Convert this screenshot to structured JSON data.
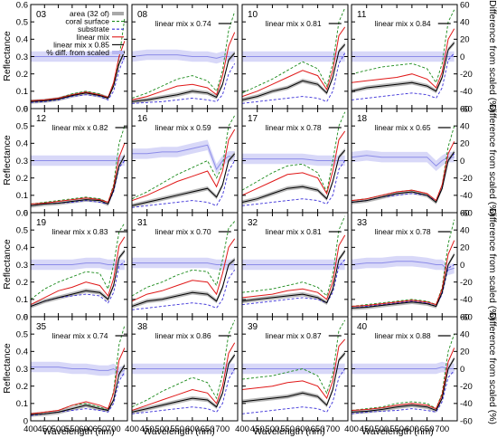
{
  "figure": {
    "left_axis_title": "Reflectance",
    "right_axis_title": "Difference from scaled (%)",
    "bottom_axis_title": "Wavelength (nm)"
  },
  "chart_data": {
    "type": "line",
    "grid_columns": 4,
    "grid_rows": 4,
    "x_range": [
      400,
      750
    ],
    "x_ticks": [
      400,
      450,
      500,
      550,
      600,
      650,
      700
    ],
    "y_left_range": [
      0,
      0.6
    ],
    "y_left_ticks": [
      0,
      0.1,
      0.2,
      0.3,
      0.4,
      0.5,
      0.6
    ],
    "y_right_range": [
      -60,
      60
    ],
    "y_right_ticks": [
      -60,
      -40,
      -20,
      0,
      20,
      40,
      60
    ],
    "grid": false,
    "legend_placement": "top-right of first panel",
    "legend": [
      {
        "label": "area (32 of)",
        "style": "band",
        "color": "#a9a9a9"
      },
      {
        "label": "coral surface",
        "style": "dashed",
        "color": "#1a8a1a"
      },
      {
        "label": "substrate",
        "style": "dashed",
        "color": "#3a2fd8"
      },
      {
        "label": "linear mix",
        "style": "solid",
        "color": "#e01818"
      },
      {
        "label": "linear mix x 0.85",
        "style": "solid",
        "color": "#000000"
      },
      {
        "label": "% diff. from scaled",
        "style": "band",
        "color": "#b8b8f2"
      }
    ],
    "colors": {
      "area": "#a9a9a9",
      "coral_surface": "#1a8a1a",
      "substrate": "#3a2fd8",
      "linear_mix": "#e01818",
      "linear_mix_scaled": "#000000",
      "pct_diff": "#b8b8f2"
    },
    "x_samples": [
      400,
      450,
      500,
      550,
      600,
      650,
      680,
      700,
      720,
      740
    ],
    "panels": [
      {
        "id": "03",
        "scale_label": "",
        "coral": [
          0.045,
          0.05,
          0.06,
          0.085,
          0.1,
          0.085,
          0.06,
          0.14,
          0.29,
          0.52
        ],
        "substrate": [
          0.035,
          0.04,
          0.05,
          0.07,
          0.08,
          0.07,
          0.05,
          0.1,
          0.22,
          0.3
        ],
        "mix": [
          0.045,
          0.05,
          0.06,
          0.08,
          0.095,
          0.08,
          0.065,
          0.15,
          0.3,
          0.39
        ],
        "scaled": [
          0.04,
          0.045,
          0.055,
          0.075,
          0.09,
          0.075,
          0.06,
          0.13,
          0.26,
          0.33
        ],
        "pct_diff": [
          0,
          0,
          0,
          0,
          0,
          0,
          0,
          0,
          0,
          0
        ]
      },
      {
        "id": "08",
        "scale_label": "linear mix x 0.74",
        "coral": [
          0.06,
          0.09,
          0.13,
          0.17,
          0.19,
          0.16,
          0.1,
          0.22,
          0.45,
          0.56
        ],
        "substrate": [
          0.03,
          0.035,
          0.04,
          0.05,
          0.06,
          0.05,
          0.04,
          0.08,
          0.2,
          0.26
        ],
        "mix": [
          0.05,
          0.07,
          0.1,
          0.13,
          0.14,
          0.12,
          0.08,
          0.19,
          0.36,
          0.44
        ],
        "scaled": [
          0.04,
          0.05,
          0.065,
          0.08,
          0.1,
          0.09,
          0.065,
          0.14,
          0.28,
          0.32
        ],
        "pct_diff": [
          0,
          2,
          2,
          2,
          0,
          0,
          -2,
          0,
          0,
          0
        ]
      },
      {
        "id": "10",
        "scale_label": "linear mix x 0.81",
        "coral": [
          0.09,
          0.13,
          0.17,
          0.22,
          0.27,
          0.23,
          0.13,
          0.26,
          0.5,
          0.58
        ],
        "substrate": [
          0.03,
          0.04,
          0.05,
          0.06,
          0.07,
          0.06,
          0.04,
          0.1,
          0.26,
          0.32
        ],
        "mix": [
          0.07,
          0.1,
          0.14,
          0.18,
          0.22,
          0.19,
          0.11,
          0.22,
          0.42,
          0.47
        ],
        "scaled": [
          0.05,
          0.07,
          0.1,
          0.12,
          0.16,
          0.14,
          0.09,
          0.18,
          0.33,
          0.37
        ],
        "pct_diff": [
          0,
          0,
          0,
          0,
          0,
          0,
          0,
          0,
          0,
          0
        ]
      },
      {
        "id": "11",
        "scale_label": "linear mix x 0.84",
        "coral": [
          0.2,
          0.22,
          0.24,
          0.25,
          0.26,
          0.23,
          0.15,
          0.26,
          0.5,
          0.57
        ],
        "substrate": [
          0.05,
          0.06,
          0.07,
          0.08,
          0.09,
          0.08,
          0.06,
          0.12,
          0.28,
          0.32
        ],
        "mix": [
          0.15,
          0.16,
          0.17,
          0.18,
          0.2,
          0.17,
          0.12,
          0.21,
          0.4,
          0.46
        ],
        "scaled": [
          0.1,
          0.12,
          0.13,
          0.14,
          0.15,
          0.13,
          0.1,
          0.18,
          0.34,
          0.38
        ],
        "pct_diff": [
          0,
          0,
          0,
          0,
          0,
          0,
          0,
          0,
          0,
          0
        ]
      },
      {
        "id": "12",
        "scale_label": "linear mix x 0.82",
        "coral": [
          0.05,
          0.06,
          0.07,
          0.08,
          0.09,
          0.08,
          0.06,
          0.16,
          0.4,
          0.5
        ],
        "substrate": [
          0.04,
          0.05,
          0.055,
          0.06,
          0.07,
          0.06,
          0.05,
          0.12,
          0.26,
          0.3
        ],
        "mix": [
          0.05,
          0.055,
          0.065,
          0.075,
          0.085,
          0.075,
          0.06,
          0.15,
          0.32,
          0.4
        ],
        "scaled": [
          0.04,
          0.05,
          0.055,
          0.065,
          0.075,
          0.07,
          0.05,
          0.13,
          0.27,
          0.33
        ],
        "pct_diff": [
          0,
          0,
          0,
          0,
          0,
          0,
          0,
          0,
          0,
          0
        ]
      },
      {
        "id": "16",
        "scale_label": "linear mix x 0.59",
        "coral": [
          0.08,
          0.12,
          0.17,
          0.22,
          0.26,
          0.3,
          0.2,
          0.27,
          0.5,
          0.56
        ],
        "substrate": [
          0.03,
          0.04,
          0.05,
          0.06,
          0.07,
          0.06,
          0.04,
          0.1,
          0.24,
          0.3
        ],
        "mix": [
          0.07,
          0.1,
          0.14,
          0.18,
          0.21,
          0.24,
          0.15,
          0.24,
          0.42,
          0.48
        ],
        "scaled": [
          0.04,
          0.06,
          0.08,
          0.1,
          0.12,
          0.14,
          0.09,
          0.16,
          0.3,
          0.34
        ],
        "pct_diff": [
          8,
          8,
          10,
          10,
          14,
          18,
          -10,
          0,
          5,
          5
        ]
      },
      {
        "id": "17",
        "scale_label": "linear mix x 0.78",
        "coral": [
          0.13,
          0.18,
          0.23,
          0.27,
          0.28,
          0.23,
          0.12,
          0.3,
          0.5,
          0.58
        ],
        "substrate": [
          0.04,
          0.05,
          0.06,
          0.07,
          0.08,
          0.07,
          0.05,
          0.1,
          0.25,
          0.3
        ],
        "mix": [
          0.1,
          0.14,
          0.18,
          0.22,
          0.23,
          0.2,
          0.11,
          0.24,
          0.42,
          0.47
        ],
        "scaled": [
          0.06,
          0.08,
          0.11,
          0.14,
          0.15,
          0.13,
          0.08,
          0.18,
          0.32,
          0.36
        ],
        "pct_diff": [
          2,
          2,
          2,
          2,
          2,
          0,
          0,
          0,
          0,
          0
        ]
      },
      {
        "id": "18",
        "scale_label": "linear mix x 0.65",
        "coral": [
          0.07,
          0.08,
          0.1,
          0.12,
          0.13,
          0.11,
          0.07,
          0.16,
          0.38,
          0.5
        ],
        "substrate": [
          0.06,
          0.07,
          0.09,
          0.1,
          0.11,
          0.1,
          0.07,
          0.14,
          0.3,
          0.34
        ],
        "mix": [
          0.07,
          0.08,
          0.1,
          0.12,
          0.13,
          0.11,
          0.07,
          0.16,
          0.34,
          0.41
        ],
        "scaled": [
          0.06,
          0.07,
          0.09,
          0.11,
          0.12,
          0.1,
          0.06,
          0.14,
          0.3,
          0.35
        ],
        "pct_diff": [
          4,
          6,
          4,
          4,
          4,
          4,
          -6,
          0,
          4,
          4
        ]
      },
      {
        "id": "19",
        "scale_label": "linear mix x 0.83",
        "coral": [
          0.1,
          0.16,
          0.2,
          0.23,
          0.26,
          0.25,
          0.16,
          0.3,
          0.49,
          0.54
        ],
        "substrate": [
          0.06,
          0.09,
          0.11,
          0.12,
          0.13,
          0.12,
          0.08,
          0.14,
          0.29,
          0.32
        ],
        "mix": [
          0.07,
          0.11,
          0.15,
          0.17,
          0.2,
          0.18,
          0.12,
          0.22,
          0.41,
          0.46
        ],
        "scaled": [
          0.06,
          0.09,
          0.11,
          0.13,
          0.15,
          0.14,
          0.1,
          0.18,
          0.34,
          0.38
        ],
        "pct_diff": [
          0,
          0,
          0,
          0,
          2,
          2,
          0,
          0,
          0,
          0
        ]
      },
      {
        "id": "31",
        "scale_label": "linear mix x 0.70",
        "coral": [
          0.12,
          0.17,
          0.2,
          0.24,
          0.27,
          0.26,
          0.18,
          0.33,
          0.51,
          0.55
        ],
        "substrate": [
          0.04,
          0.05,
          0.06,
          0.07,
          0.08,
          0.07,
          0.05,
          0.1,
          0.22,
          0.27
        ],
        "mix": [
          0.09,
          0.13,
          0.15,
          0.18,
          0.21,
          0.2,
          0.13,
          0.25,
          0.4,
          0.45
        ],
        "scaled": [
          0.06,
          0.09,
          0.1,
          0.12,
          0.14,
          0.13,
          0.09,
          0.17,
          0.3,
          0.33
        ],
        "pct_diff": [
          2,
          2,
          2,
          2,
          2,
          2,
          0,
          0,
          0,
          0
        ]
      },
      {
        "id": "32",
        "scale_label": "linear mix x 0.81",
        "coral": [
          0.14,
          0.15,
          0.16,
          0.18,
          0.2,
          0.17,
          0.12,
          0.24,
          0.5,
          0.58
        ],
        "substrate": [
          0.07,
          0.08,
          0.09,
          0.1,
          0.11,
          0.1,
          0.08,
          0.14,
          0.29,
          0.33
        ],
        "mix": [
          0.11,
          0.12,
          0.13,
          0.15,
          0.16,
          0.14,
          0.1,
          0.2,
          0.41,
          0.47
        ],
        "scaled": [
          0.09,
          0.1,
          0.11,
          0.12,
          0.13,
          0.11,
          0.08,
          0.16,
          0.33,
          0.38
        ],
        "pct_diff": [
          0,
          0,
          0,
          0,
          0,
          0,
          0,
          0,
          0,
          0
        ]
      },
      {
        "id": "33",
        "scale_label": "linear mix x 0.78",
        "coral": [
          0.06,
          0.07,
          0.08,
          0.09,
          0.1,
          0.09,
          0.07,
          0.17,
          0.42,
          0.56
        ],
        "substrate": [
          0.05,
          0.06,
          0.07,
          0.08,
          0.09,
          0.08,
          0.06,
          0.13,
          0.28,
          0.3
        ],
        "mix": [
          0.06,
          0.065,
          0.075,
          0.085,
          0.095,
          0.085,
          0.07,
          0.16,
          0.36,
          0.44
        ],
        "scaled": [
          0.05,
          0.055,
          0.065,
          0.075,
          0.085,
          0.075,
          0.06,
          0.14,
          0.3,
          0.36
        ],
        "pct_diff": [
          0,
          2,
          2,
          4,
          4,
          2,
          0,
          0,
          -6,
          -4
        ]
      },
      {
        "id": "35",
        "scale_label": "linear mix x 0.74",
        "coral": [
          0.04,
          0.05,
          0.06,
          0.09,
          0.1,
          0.08,
          0.06,
          0.17,
          0.44,
          0.55
        ],
        "substrate": [
          0.03,
          0.04,
          0.05,
          0.06,
          0.07,
          0.06,
          0.05,
          0.1,
          0.23,
          0.28
        ],
        "mix": [
          0.04,
          0.05,
          0.06,
          0.09,
          0.11,
          0.09,
          0.07,
          0.16,
          0.35,
          0.42
        ],
        "scaled": [
          0.035,
          0.04,
          0.05,
          0.07,
          0.09,
          0.07,
          0.06,
          0.12,
          0.27,
          0.32
        ],
        "pct_diff": [
          2,
          2,
          2,
          0,
          0,
          -2,
          -2,
          0,
          -4,
          -2
        ]
      },
      {
        "id": "38",
        "scale_label": "linear mix x 0.86",
        "coral": [
          0.08,
          0.12,
          0.17,
          0.21,
          0.25,
          0.22,
          0.13,
          0.27,
          0.5,
          0.58
        ],
        "substrate": [
          0.04,
          0.05,
          0.06,
          0.07,
          0.08,
          0.07,
          0.05,
          0.1,
          0.24,
          0.3
        ],
        "mix": [
          0.06,
          0.09,
          0.12,
          0.15,
          0.18,
          0.16,
          0.1,
          0.2,
          0.39,
          0.45
        ],
        "scaled": [
          0.05,
          0.07,
          0.09,
          0.11,
          0.13,
          0.12,
          0.08,
          0.16,
          0.33,
          0.38
        ],
        "pct_diff": [
          0,
          0,
          0,
          0,
          0,
          0,
          0,
          0,
          0,
          0
        ]
      },
      {
        "id": "39",
        "scale_label": "linear mix x 0.87",
        "coral": [
          0.24,
          0.25,
          0.26,
          0.28,
          0.3,
          0.26,
          0.16,
          0.27,
          0.52,
          0.58
        ],
        "substrate": [
          0.04,
          0.05,
          0.06,
          0.07,
          0.08,
          0.07,
          0.05,
          0.11,
          0.25,
          0.3
        ],
        "mix": [
          0.18,
          0.19,
          0.2,
          0.22,
          0.23,
          0.2,
          0.13,
          0.23,
          0.43,
          0.47
        ],
        "scaled": [
          0.11,
          0.12,
          0.13,
          0.14,
          0.16,
          0.14,
          0.09,
          0.18,
          0.35,
          0.39
        ],
        "pct_diff": [
          0,
          0,
          0,
          0,
          0,
          0,
          0,
          0,
          0,
          0
        ]
      },
      {
        "id": "40",
        "scale_label": "linear mix x 0.88",
        "coral": [
          0.06,
          0.07,
          0.08,
          0.1,
          0.11,
          0.1,
          0.07,
          0.16,
          0.4,
          0.5
        ],
        "substrate": [
          0.04,
          0.05,
          0.055,
          0.06,
          0.07,
          0.06,
          0.05,
          0.11,
          0.25,
          0.29
        ],
        "mix": [
          0.06,
          0.065,
          0.075,
          0.09,
          0.1,
          0.09,
          0.07,
          0.15,
          0.34,
          0.42
        ],
        "scaled": [
          0.05,
          0.055,
          0.065,
          0.08,
          0.09,
          0.08,
          0.06,
          0.13,
          0.3,
          0.36
        ],
        "pct_diff": [
          0,
          0,
          0,
          0,
          0,
          0,
          0,
          2,
          0,
          0
        ]
      }
    ]
  }
}
